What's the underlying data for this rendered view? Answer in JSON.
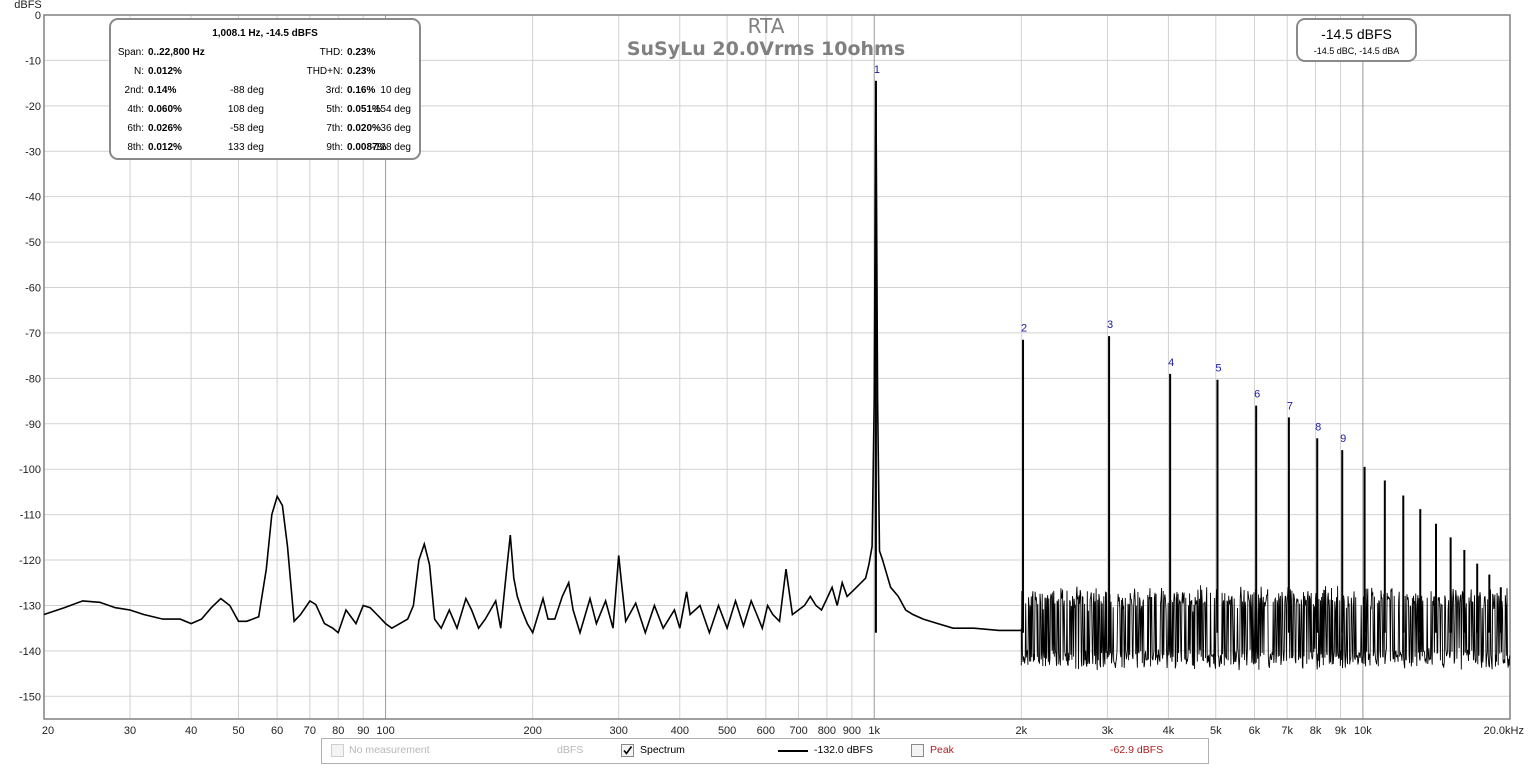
{
  "chart_data": {
    "type": "line",
    "title": "RTA",
    "subtitle": "SuSyLu 20.0Vrms 10ohms",
    "ylabel": "dBFS",
    "xlabel": "",
    "x_scale": "log",
    "xlim": [
      20,
      20000
    ],
    "ylim": [
      -155,
      0
    ],
    "grid": true,
    "x_ticks": [
      {
        "v": 20,
        "label": "20"
      },
      {
        "v": 30,
        "label": "30"
      },
      {
        "v": 40,
        "label": "40"
      },
      {
        "v": 50,
        "label": "50"
      },
      {
        "v": 60,
        "label": "60"
      },
      {
        "v": 70,
        "label": "70"
      },
      {
        "v": 80,
        "label": "80"
      },
      {
        "v": 90,
        "label": "90"
      },
      {
        "v": 100,
        "label": "100"
      },
      {
        "v": 200,
        "label": "200"
      },
      {
        "v": 300,
        "label": "300"
      },
      {
        "v": 400,
        "label": "400"
      },
      {
        "v": 500,
        "label": "500"
      },
      {
        "v": 600,
        "label": "600"
      },
      {
        "v": 700,
        "label": "700"
      },
      {
        "v": 800,
        "label": "800"
      },
      {
        "v": 900,
        "label": "900"
      },
      {
        "v": 1000,
        "label": "1k"
      },
      {
        "v": 2000,
        "label": "2k"
      },
      {
        "v": 3000,
        "label": "3k"
      },
      {
        "v": 4000,
        "label": "4k"
      },
      {
        "v": 5000,
        "label": "5k"
      },
      {
        "v": 6000,
        "label": "6k"
      },
      {
        "v": 7000,
        "label": "7k"
      },
      {
        "v": 8000,
        "label": "8k"
      },
      {
        "v": 9000,
        "label": "9k"
      },
      {
        "v": 10000,
        "label": "10k"
      },
      {
        "v": 20000,
        "label": "20.0kHz"
      }
    ],
    "y_ticks": [
      {
        "v": 0,
        "label": "0"
      },
      {
        "v": -10,
        "label": "-10"
      },
      {
        "v": -20,
        "label": "-20"
      },
      {
        "v": -30,
        "label": "-30"
      },
      {
        "v": -40,
        "label": "-40"
      },
      {
        "v": -50,
        "label": "-50"
      },
      {
        "v": -60,
        "label": "-60"
      },
      {
        "v": -70,
        "label": "-70"
      },
      {
        "v": -80,
        "label": "-80"
      },
      {
        "v": -90,
        "label": "-90"
      },
      {
        "v": -100,
        "label": "-100"
      },
      {
        "v": -110,
        "label": "-110"
      },
      {
        "v": -120,
        "label": "-120"
      },
      {
        "v": -130,
        "label": "-130"
      },
      {
        "v": -140,
        "label": "-140"
      },
      {
        "v": -150,
        "label": "-150"
      }
    ],
    "harmonics": [
      {
        "label": "1",
        "x": 1008,
        "y": -14.5
      },
      {
        "label": "2",
        "x": 2016,
        "y": -71.5
      },
      {
        "label": "3",
        "x": 3024,
        "y": -70.7
      },
      {
        "label": "4",
        "x": 4032,
        "y": -79
      },
      {
        "label": "5",
        "x": 5040,
        "y": -80.3
      },
      {
        "label": "6",
        "x": 6048,
        "y": -86
      },
      {
        "label": "7",
        "x": 7056,
        "y": -88.6
      },
      {
        "label": "8",
        "x": 8064,
        "y": -93.2
      },
      {
        "label": "9",
        "x": 9072,
        "y": -95.8
      }
    ],
    "upper_harmonics": [
      {
        "x": 10080,
        "y": -99.5
      },
      {
        "x": 11088,
        "y": -102.5
      },
      {
        "x": 12096,
        "y": -105.8
      },
      {
        "x": 13104,
        "y": -108.8
      },
      {
        "x": 14112,
        "y": -112
      },
      {
        "x": 15120,
        "y": -115
      },
      {
        "x": 16128,
        "y": -117.8
      },
      {
        "x": 17136,
        "y": -120.8
      },
      {
        "x": 18144,
        "y": -123.2
      },
      {
        "x": 19152,
        "y": -126
      }
    ],
    "series": [
      {
        "name": "Spectrum",
        "low_band_points": [
          [
            20,
            -132
          ],
          [
            22,
            -130.5
          ],
          [
            24,
            -129
          ],
          [
            26,
            -129.3
          ],
          [
            28,
            -130.5
          ],
          [
            30,
            -131
          ],
          [
            32,
            -132
          ],
          [
            35,
            -133
          ],
          [
            38,
            -133
          ],
          [
            40,
            -134
          ],
          [
            42,
            -133
          ],
          [
            44,
            -130.5
          ],
          [
            46,
            -128.5
          ],
          [
            48,
            -130
          ],
          [
            50,
            -133.5
          ],
          [
            52,
            -133.5
          ],
          [
            55,
            -132.5
          ],
          [
            57,
            -122
          ],
          [
            58.5,
            -110
          ],
          [
            60,
            -106
          ],
          [
            61.5,
            -108
          ],
          [
            63,
            -117
          ],
          [
            65,
            -133.5
          ],
          [
            67,
            -132
          ],
          [
            70,
            -129
          ],
          [
            72,
            -129.8
          ],
          [
            75,
            -134
          ],
          [
            78,
            -135
          ],
          [
            80,
            -136
          ],
          [
            83,
            -131
          ],
          [
            87,
            -134
          ],
          [
            90,
            -130
          ],
          [
            93,
            -130.5
          ],
          [
            96,
            -132
          ],
          [
            100,
            -134
          ],
          [
            103,
            -135
          ],
          [
            107,
            -134
          ],
          [
            111,
            -133
          ],
          [
            114,
            -130
          ],
          [
            117,
            -120
          ],
          [
            120,
            -116.5
          ],
          [
            123,
            -121
          ],
          [
            126,
            -133
          ],
          [
            130,
            -135
          ],
          [
            135,
            -131
          ],
          [
            140,
            -135
          ],
          [
            146,
            -128.5
          ],
          [
            150,
            -131
          ],
          [
            155,
            -135
          ],
          [
            160,
            -133
          ],
          [
            168,
            -129
          ],
          [
            172,
            -135
          ],
          [
            177,
            -122
          ],
          [
            180,
            -114.5
          ],
          [
            183,
            -124
          ],
          [
            186,
            -128
          ],
          [
            190,
            -131
          ],
          [
            195,
            -134
          ],
          [
            200,
            -136
          ],
          [
            210,
            -128.5
          ],
          [
            215,
            -133
          ],
          [
            222,
            -133
          ],
          [
            230,
            -128
          ],
          [
            237,
            -125
          ],
          [
            242,
            -131
          ],
          [
            250,
            -136
          ],
          [
            262,
            -128.5
          ],
          [
            270,
            -134
          ],
          [
            282,
            -129
          ],
          [
            292,
            -135
          ],
          [
            300,
            -119
          ],
          [
            304,
            -125
          ],
          [
            310,
            -133.5
          ],
          [
            325,
            -129.5
          ],
          [
            340,
            -136
          ],
          [
            355,
            -130
          ],
          [
            370,
            -135
          ],
          [
            390,
            -131
          ],
          [
            400,
            -135
          ],
          [
            413,
            -127
          ],
          [
            420,
            -132
          ],
          [
            440,
            -130
          ],
          [
            460,
            -136
          ],
          [
            480,
            -130
          ],
          [
            500,
            -135
          ],
          [
            520,
            -129
          ],
          [
            540,
            -134.5
          ],
          [
            560,
            -129
          ],
          [
            575,
            -132
          ],
          [
            590,
            -135
          ],
          [
            605,
            -130
          ],
          [
            620,
            -132
          ],
          [
            640,
            -133.5
          ],
          [
            660,
            -122
          ],
          [
            680,
            -132
          ],
          [
            700,
            -131
          ],
          [
            720,
            -130
          ],
          [
            740,
            -128
          ],
          [
            760,
            -130
          ],
          [
            780,
            -131
          ],
          [
            800,
            -128.5
          ],
          [
            820,
            -126
          ],
          [
            840,
            -130
          ],
          [
            860,
            -125
          ],
          [
            880,
            -128
          ],
          [
            900,
            -127
          ],
          [
            920,
            -126
          ],
          [
            940,
            -125
          ],
          [
            960,
            -124
          ],
          [
            975,
            -121
          ],
          [
            990,
            -117
          ],
          [
            1000,
            -85
          ],
          [
            1008,
            -14.5
          ],
          [
            1016,
            -85
          ],
          [
            1025,
            -118
          ],
          [
            1040,
            -120
          ],
          [
            1060,
            -123
          ],
          [
            1080,
            -126
          ],
          [
            1120,
            -128
          ],
          [
            1160,
            -131
          ],
          [
            1200,
            -132
          ],
          [
            1260,
            -133
          ],
          [
            1350,
            -134
          ],
          [
            1450,
            -135
          ],
          [
            1600,
            -135
          ],
          [
            1800,
            -135.5
          ],
          [
            2000,
            -135.5
          ]
        ],
        "noise_band": {
          "from": 2000,
          "to": 20000,
          "upper": -130,
          "lower": -141
        }
      }
    ]
  },
  "stats": {
    "header": "1,008.1 Hz, -14.5 dBFS",
    "rows": [
      [
        {
          "l": "Span:",
          "v": "0..22,800 Hz"
        },
        {
          "l": "THD:",
          "v": "0.23%"
        }
      ],
      [
        {
          "l": "N:",
          "v": "0.012%"
        },
        {
          "l": "THD+N:",
          "v": "0.23%"
        }
      ],
      [
        {
          "l": "2nd:",
          "v": "0.14%",
          "d": "-88 deg"
        },
        {
          "l": "3rd:",
          "v": "0.16%",
          "d": "10 deg"
        }
      ],
      [
        {
          "l": "4th:",
          "v": "0.060%",
          "d": "108 deg"
        },
        {
          "l": "5th:",
          "v": "0.051%",
          "d": "-154 deg"
        }
      ],
      [
        {
          "l": "6th:",
          "v": "0.026%",
          "d": "-58 deg"
        },
        {
          "l": "7th:",
          "v": "0.020%",
          "d": "36 deg"
        }
      ],
      [
        {
          "l": "8th:",
          "v": "0.012%",
          "d": "133 deg"
        },
        {
          "l": "9th:",
          "v": "0.0087%",
          "d": "-128 deg"
        }
      ]
    ]
  },
  "level": {
    "main": "-14.5 dBFS",
    "sub": "-14.5 dBC, -14.5 dBA"
  },
  "legend": {
    "no_measurement": "No measurement",
    "no_measurement_unit": "dBFS",
    "spectrum_label": "Spectrum",
    "spectrum_value": "-132.0 dBFS",
    "peak_label": "Peak",
    "peak_value": "-62.9 dBFS",
    "spectrum_checked": true,
    "peak_checked": false,
    "spectrum_color": "#000000",
    "peak_color": "#b02020"
  },
  "colors": {
    "grid": "#d2d2d2",
    "grid_major": "#9a9a9a",
    "axis": "#808080",
    "trace": "#000000",
    "harmonic_label": "#1a1aa0"
  }
}
